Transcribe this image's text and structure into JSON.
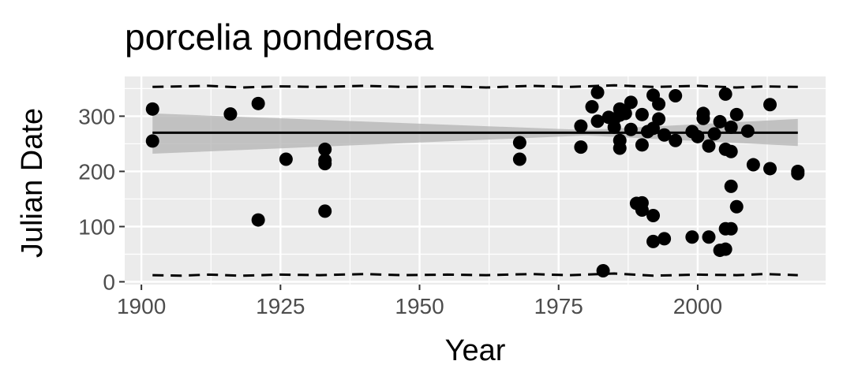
{
  "chart_data": {
    "type": "scatter",
    "title": "porcelia ponderosa",
    "xlabel": "Year",
    "ylabel": "Julian Date",
    "xlim": [
      1897,
      2023
    ],
    "ylim": [
      -5,
      372
    ],
    "x_ticks": [
      {
        "value": 1900,
        "label": "1900"
      },
      {
        "value": 1925,
        "label": "1925"
      },
      {
        "value": 1950,
        "label": "1950"
      },
      {
        "value": 1975,
        "label": "1975"
      },
      {
        "value": 2000,
        "label": "2000"
      }
    ],
    "y_ticks": [
      {
        "value": 0,
        "label": "0"
      },
      {
        "value": 100,
        "label": "100"
      },
      {
        "value": 200,
        "label": "200"
      },
      {
        "value": 300,
        "label": "300"
      }
    ],
    "grid": true,
    "background": "#ebebeb",
    "points": [
      {
        "x": 1902,
        "y": 313
      },
      {
        "x": 1902,
        "y": 255
      },
      {
        "x": 1916,
        "y": 304
      },
      {
        "x": 1921,
        "y": 323
      },
      {
        "x": 1921,
        "y": 112
      },
      {
        "x": 1926,
        "y": 222
      },
      {
        "x": 1933,
        "y": 240
      },
      {
        "x": 1933,
        "y": 220
      },
      {
        "x": 1933,
        "y": 214
      },
      {
        "x": 1933,
        "y": 128
      },
      {
        "x": 1968,
        "y": 252
      },
      {
        "x": 1968,
        "y": 222
      },
      {
        "x": 1979,
        "y": 282
      },
      {
        "x": 1979,
        "y": 244
      },
      {
        "x": 1981,
        "y": 317
      },
      {
        "x": 1982,
        "y": 343
      },
      {
        "x": 1982,
        "y": 291
      },
      {
        "x": 1983,
        "y": 20
      },
      {
        "x": 1984,
        "y": 298
      },
      {
        "x": 1985,
        "y": 280
      },
      {
        "x": 1985,
        "y": 295
      },
      {
        "x": 1986,
        "y": 313
      },
      {
        "x": 1986,
        "y": 302
      },
      {
        "x": 1986,
        "y": 256
      },
      {
        "x": 1986,
        "y": 242
      },
      {
        "x": 1987,
        "y": 305
      },
      {
        "x": 1988,
        "y": 325
      },
      {
        "x": 1988,
        "y": 276
      },
      {
        "x": 1989,
        "y": 142
      },
      {
        "x": 1990,
        "y": 303
      },
      {
        "x": 1990,
        "y": 248
      },
      {
        "x": 1990,
        "y": 143
      },
      {
        "x": 1990,
        "y": 130
      },
      {
        "x": 1991,
        "y": 272
      },
      {
        "x": 1992,
        "y": 338
      },
      {
        "x": 1992,
        "y": 278
      },
      {
        "x": 1992,
        "y": 120
      },
      {
        "x": 1992,
        "y": 73
      },
      {
        "x": 1993,
        "y": 322
      },
      {
        "x": 1993,
        "y": 295
      },
      {
        "x": 1994,
        "y": 266
      },
      {
        "x": 1994,
        "y": 78
      },
      {
        "x": 1996,
        "y": 337
      },
      {
        "x": 1996,
        "y": 256
      },
      {
        "x": 1999,
        "y": 272
      },
      {
        "x": 1999,
        "y": 81
      },
      {
        "x": 2000,
        "y": 263
      },
      {
        "x": 2001,
        "y": 305
      },
      {
        "x": 2001,
        "y": 296
      },
      {
        "x": 2002,
        "y": 246
      },
      {
        "x": 2002,
        "y": 81
      },
      {
        "x": 2003,
        "y": 268
      },
      {
        "x": 2004,
        "y": 290
      },
      {
        "x": 2004,
        "y": 57
      },
      {
        "x": 2005,
        "y": 340
      },
      {
        "x": 2005,
        "y": 240
      },
      {
        "x": 2005,
        "y": 96
      },
      {
        "x": 2005,
        "y": 59
      },
      {
        "x": 2006,
        "y": 280
      },
      {
        "x": 2006,
        "y": 236
      },
      {
        "x": 2006,
        "y": 173
      },
      {
        "x": 2006,
        "y": 96
      },
      {
        "x": 2007,
        "y": 303
      },
      {
        "x": 2007,
        "y": 136
      },
      {
        "x": 2009,
        "y": 273
      },
      {
        "x": 2010,
        "y": 212
      },
      {
        "x": 2013,
        "y": 321
      },
      {
        "x": 2013,
        "y": 205
      },
      {
        "x": 2018,
        "y": 200
      },
      {
        "x": 2018,
        "y": 196
      }
    ],
    "trend_line": {
      "x": [
        1902,
        2018
      ],
      "y": [
        270,
        270
      ],
      "color": "#000000"
    },
    "confidence_band": {
      "x": [
        1902,
        1980,
        2018
      ],
      "lower": [
        232,
        265,
        246
      ],
      "upper": [
        305,
        275,
        295
      ],
      "color": "#b3b3b3"
    },
    "upper_bound_dashed": {
      "x": [
        1902,
        1907,
        1912,
        1918,
        1925,
        1932,
        1940,
        1947,
        1955,
        1962,
        1970,
        1977,
        1985,
        1992,
        2000,
        2007,
        2012,
        2018
      ],
      "y": [
        353,
        354,
        355,
        352,
        354,
        353,
        355,
        353,
        354,
        352,
        355,
        353,
        356,
        353,
        355,
        352,
        354,
        353
      ]
    },
    "lower_bound_dashed": {
      "x": [
        1902,
        1907,
        1912,
        1918,
        1925,
        1932,
        1940,
        1947,
        1955,
        1962,
        1970,
        1977,
        1985,
        1992,
        2000,
        2007,
        2012,
        2018
      ],
      "y": [
        12,
        11,
        13,
        11,
        13,
        12,
        14,
        12,
        13,
        12,
        14,
        12,
        15,
        11,
        13,
        12,
        14,
        12
      ]
    }
  }
}
